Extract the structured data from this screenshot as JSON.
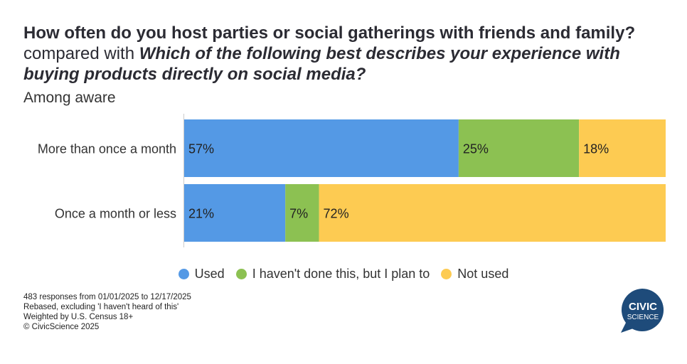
{
  "title": {
    "part1": "How often do you host parties or social gatherings with friends and family?",
    "connector": " compared with ",
    "part2": "Which of the following best describes your experience with buying products directly on social media?"
  },
  "subtitle": "Among aware",
  "chart_data": {
    "type": "bar",
    "orientation": "horizontal",
    "stacked": true,
    "categories": [
      "More than once a month",
      "Once a month or less"
    ],
    "series": [
      {
        "name": "Used",
        "color": "#5499E5",
        "values": [
          57,
          21
        ]
      },
      {
        "name": "I haven't done this, but I plan to",
        "color": "#8CC152",
        "values": [
          25,
          7
        ]
      },
      {
        "name": "Not used",
        "color": "#FDCB52",
        "values": [
          18,
          72
        ]
      }
    ],
    "xlim": [
      0,
      100
    ],
    "legend": "bottom",
    "unit": "%"
  },
  "footer": [
    "483 responses from 01/01/2025 to 12/17/2025",
    "Rebased, excluding 'I haven't heard of this'",
    "Weighted by U.S. Census 18+",
    "© CivicScience 2025"
  ],
  "logo": {
    "line1": "CIVIC",
    "line2": "SCIENCE",
    "color": "#1E4B7A"
  }
}
